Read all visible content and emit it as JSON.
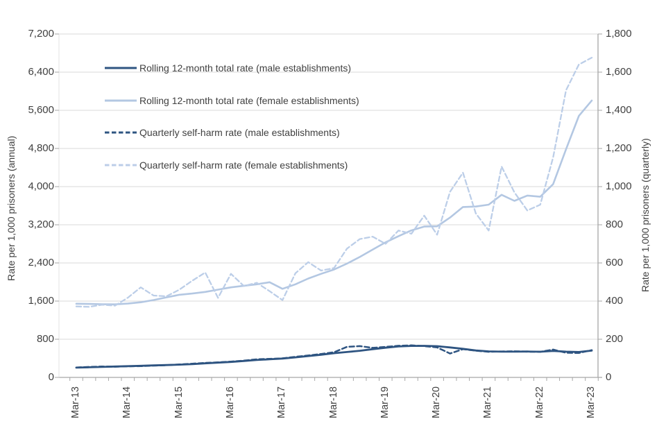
{
  "chart_data": {
    "type": "line",
    "title": "",
    "x_categories": [
      "Mar-13",
      "Jun-13",
      "Sep-13",
      "Dec-13",
      "Mar-14",
      "Jun-14",
      "Sep-14",
      "Dec-14",
      "Mar-15",
      "Jun-15",
      "Sep-15",
      "Dec-15",
      "Mar-16",
      "Jun-16",
      "Sep-16",
      "Dec-16",
      "Mar-17",
      "Jun-17",
      "Sep-17",
      "Dec-17",
      "Mar-18",
      "Jun-18",
      "Sep-18",
      "Dec-18",
      "Mar-19",
      "Jun-19",
      "Sep-19",
      "Dec-19",
      "Mar-20",
      "Jun-20",
      "Sep-20",
      "Dec-20",
      "Mar-21",
      "Jun-21",
      "Sep-21",
      "Dec-21",
      "Mar-22",
      "Jun-22",
      "Sep-22",
      "Dec-22",
      "Mar-23"
    ],
    "x_tick_labels": [
      "Mar-13",
      "Mar-14",
      "Mar-15",
      "Mar-16",
      "Mar-17",
      "Mar-18",
      "Mar-19",
      "Mar-20",
      "Mar-21",
      "Mar-22",
      "Mar-23"
    ],
    "left_axis": {
      "title": "Rate per 1,000 prisoners (annual)",
      "min": 0,
      "max": 7200,
      "step": 800,
      "tick_labels": [
        "0",
        "800",
        "1,600",
        "2,400",
        "3,200",
        "4,000",
        "4,800",
        "5,600",
        "6,400",
        "7,200"
      ]
    },
    "right_axis": {
      "title": "Rate per 1,000 prisoners (quarterly)",
      "min": 0,
      "max": 1800,
      "step": 200,
      "tick_labels": [
        "0",
        "200",
        "400",
        "600",
        "800",
        "1,000",
        "1,200",
        "1,400",
        "1,600",
        "1,800"
      ]
    },
    "grid": true,
    "legend_position": "top-left-inside",
    "colors": {
      "gridline": "#d9d9d9",
      "axis": "#a6a6a6",
      "text": "#404040",
      "dark_series": "#2e5481",
      "light_series": "#b3c7e2",
      "light_dashed_series": "#bccee8"
    },
    "series": [
      {
        "name": "Rolling 12-month total rate (male establishments)",
        "axis": "left",
        "style": "solid",
        "color": "#2e5481",
        "values": [
          205,
          212,
          220,
          228,
          236,
          243,
          251,
          259,
          268,
          278,
          295,
          310,
          325,
          345,
          365,
          380,
          395,
          420,
          448,
          476,
          508,
          532,
          558,
          592,
          622,
          648,
          660,
          662,
          655,
          628,
          600,
          565,
          545,
          540,
          540,
          542,
          538,
          556,
          540,
          532,
          562
        ]
      },
      {
        "name": "Rolling 12-month total rate (female establishments)",
        "axis": "left",
        "style": "solid",
        "color": "#b3c7e2",
        "values": [
          1545,
          1540,
          1535,
          1532,
          1548,
          1575,
          1622,
          1678,
          1732,
          1758,
          1792,
          1840,
          1888,
          1922,
          1952,
          1995,
          1858,
          1952,
          2072,
          2172,
          2262,
          2385,
          2525,
          2680,
          2832,
          2962,
          3082,
          3162,
          3168,
          3352,
          3572,
          3582,
          3622,
          3828,
          3702,
          3812,
          3788,
          4052,
          4782,
          5482,
          5805
        ]
      },
      {
        "name": "Quarterly self-harm rate (male establishments)",
        "axis": "right",
        "style": "dashed",
        "color": "#2e5481",
        "values": [
          52,
          55,
          57,
          56,
          58,
          59,
          62,
          64,
          68,
          72,
          76,
          79,
          83,
          88,
          95,
          97,
          100,
          108,
          115,
          123,
          132,
          160,
          164,
          155,
          160,
          166,
          168,
          164,
          157,
          125,
          148,
          140,
          134,
          136,
          137,
          135,
          134,
          146,
          129,
          128,
          143
        ]
      },
      {
        "name": "Quarterly self-harm rate (female establishments)",
        "axis": "right",
        "style": "dashed",
        "color": "#bccee8",
        "values": [
          372,
          370,
          381,
          376,
          418,
          472,
          429,
          425,
          460,
          507,
          550,
          417,
          543,
          479,
          496,
          452,
          405,
          546,
          604,
          560,
          573,
          675,
          725,
          738,
          700,
          770,
          753,
          848,
          748,
          973,
          1073,
          860,
          770,
          1105,
          970,
          875,
          905,
          1153,
          1505,
          1640,
          1676
        ]
      }
    ]
  }
}
